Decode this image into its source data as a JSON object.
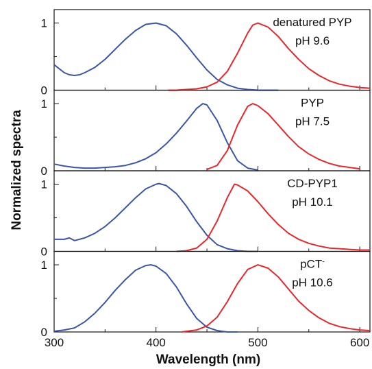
{
  "chart_data": {
    "type": "line",
    "xlabel": "Wavelength (nm)",
    "ylabel": "Normalized spectra",
    "xlim": [
      300,
      610
    ],
    "x_ticks": [
      "300",
      "400",
      "500",
      "600"
    ],
    "y_ticks": [
      "0",
      "1"
    ],
    "colors": {
      "absorption": "#3a55a4",
      "emission": "#e8262b"
    },
    "panels": [
      {
        "label_line1": "denatured PYP",
        "label_line2": "pH 9.6",
        "ylim": [
          0,
          1.2
        ],
        "series": [
          {
            "color_key": "absorption",
            "x": [
              300,
              305,
              310,
              315,
              320,
              325,
              330,
              340,
              350,
              360,
              370,
              380,
              390,
              400,
              410,
              420,
              430,
              440,
              450,
              460,
              470,
              480,
              490,
              500,
              510,
              520
            ],
            "y": [
              0.38,
              0.32,
              0.26,
              0.23,
              0.22,
              0.23,
              0.26,
              0.34,
              0.46,
              0.61,
              0.76,
              0.89,
              0.98,
              1.0,
              0.96,
              0.84,
              0.67,
              0.48,
              0.3,
              0.16,
              0.08,
              0.03,
              0.01,
              0.0,
              0.0,
              0.0
            ]
          },
          {
            "color_key": "emission",
            "x": [
              412,
              420,
              430,
              440,
              450,
              460,
              470,
              480,
              490,
              495,
              500,
              510,
              520,
              530,
              540,
              550,
              560,
              570,
              580,
              590,
              600,
              610
            ],
            "y": [
              0.0,
              0.0,
              0.01,
              0.02,
              0.05,
              0.12,
              0.28,
              0.55,
              0.85,
              0.97,
              1.0,
              0.94,
              0.8,
              0.62,
              0.46,
              0.32,
              0.22,
              0.14,
              0.09,
              0.06,
              0.04,
              0.03
            ]
          }
        ]
      },
      {
        "label_line1": "PYP",
        "label_line2": "pH 7.5",
        "ylim": [
          0,
          1.2
        ],
        "series": [
          {
            "color_key": "absorption",
            "x": [
              300,
              310,
              320,
              330,
              340,
              350,
              360,
              370,
              380,
              390,
              400,
              410,
              420,
              430,
              440,
              446,
              450,
              460,
              470,
              480,
              490,
              500
            ],
            "y": [
              0.1,
              0.07,
              0.05,
              0.04,
              0.04,
              0.05,
              0.06,
              0.08,
              0.12,
              0.18,
              0.27,
              0.4,
              0.56,
              0.74,
              0.93,
              1.0,
              0.98,
              0.75,
              0.42,
              0.15,
              0.04,
              0.01
            ]
          },
          {
            "color_key": "emission",
            "x": [
              450,
              460,
              470,
              480,
              490,
              495,
              500,
              510,
              520,
              530,
              540,
              550,
              560,
              570,
              580,
              590,
              600
            ],
            "y": [
              0.02,
              0.08,
              0.3,
              0.68,
              0.96,
              1.0,
              0.97,
              0.85,
              0.68,
              0.51,
              0.36,
              0.25,
              0.17,
              0.11,
              0.07,
              0.05,
              0.03
            ]
          }
        ]
      },
      {
        "label_line1": "CD-PYP1",
        "label_line2": "pH 10.1",
        "ylim": [
          0,
          1.2
        ],
        "series": [
          {
            "color_key": "absorption",
            "x": [
              300,
              310,
              315,
              320,
              330,
              340,
              350,
              360,
              370,
              380,
              390,
              400,
              403,
              410,
              420,
              430,
              440,
              450,
              460,
              470,
              480,
              490,
              500
            ],
            "y": [
              0.18,
              0.18,
              0.2,
              0.16,
              0.2,
              0.27,
              0.37,
              0.5,
              0.65,
              0.8,
              0.93,
              1.0,
              1.01,
              0.98,
              0.86,
              0.67,
              0.44,
              0.24,
              0.1,
              0.04,
              0.01,
              0.0,
              0.0
            ]
          },
          {
            "color_key": "emission",
            "x": [
              420,
              430,
              440,
              450,
              460,
              470,
              477,
              480,
              490,
              500,
              510,
              520,
              530,
              540,
              550,
              560,
              570,
              580,
              590,
              600,
              610
            ],
            "y": [
              0.0,
              0.01,
              0.05,
              0.18,
              0.45,
              0.8,
              1.0,
              0.99,
              0.9,
              0.74,
              0.56,
              0.4,
              0.27,
              0.18,
              0.12,
              0.08,
              0.05,
              0.04,
              0.03,
              0.02,
              0.02
            ]
          }
        ]
      },
      {
        "label_line1": "pCT",
        "label_line1_sup": "-",
        "label_line2": "pH 10.6",
        "ylim": [
          0,
          1.2
        ],
        "series": [
          {
            "color_key": "absorption",
            "x": [
              300,
              310,
              320,
              330,
              340,
              350,
              360,
              370,
              380,
              390,
              395,
              400,
              410,
              420,
              430,
              440,
              450,
              460,
              470,
              480
            ],
            "y": [
              0.01,
              0.03,
              0.06,
              0.15,
              0.28,
              0.44,
              0.62,
              0.78,
              0.92,
              0.99,
              1.0,
              0.98,
              0.87,
              0.67,
              0.42,
              0.2,
              0.07,
              0.02,
              0.0,
              0.0
            ]
          },
          {
            "color_key": "emission",
            "x": [
              425,
              430,
              440,
              450,
              460,
              470,
              480,
              490,
              500,
              510,
              520,
              530,
              540,
              550,
              560,
              570,
              580,
              590,
              600,
              610
            ],
            "y": [
              0.0,
              0.01,
              0.03,
              0.09,
              0.22,
              0.45,
              0.72,
              0.93,
              1.0,
              0.95,
              0.82,
              0.64,
              0.46,
              0.32,
              0.21,
              0.13,
              0.08,
              0.05,
              0.03,
              0.02
            ]
          }
        ]
      }
    ]
  }
}
